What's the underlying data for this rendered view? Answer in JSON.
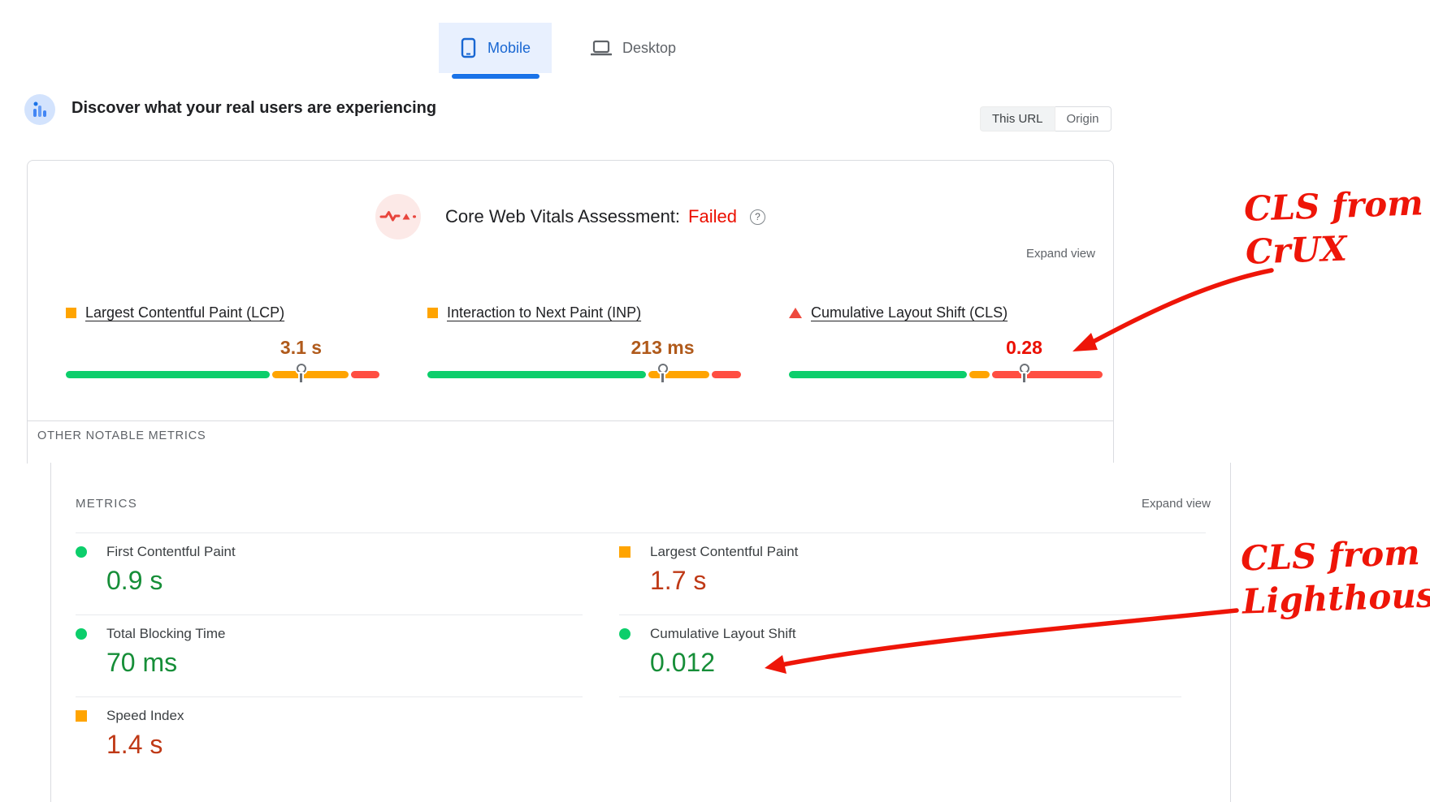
{
  "device_tabs": {
    "mobile_label": "Mobile",
    "desktop_label": "Desktop",
    "selected": "Mobile"
  },
  "field_section": {
    "title": "Discover what your real users are experiencing",
    "scope_toggle": {
      "this_url_label": "This URL",
      "origin_label": "Origin",
      "selected": "This URL"
    },
    "assessment_label": "Core Web Vitals Assessment:",
    "assessment_result": "Failed",
    "expand_view_label": "Expand view",
    "other_notable_metrics_label": "OTHER NOTABLE METRICS",
    "metrics": [
      {
        "name": "Largest Contentful Paint (LCP)",
        "value": "3.1 s",
        "status": "needs-improvement",
        "bullet": "bullet-square",
        "value_class": "val-orange",
        "distribution": {
          "good": 65,
          "ni": 24.5,
          "poor": 9,
          "marker": 75
        }
      },
      {
        "name": "Interaction to Next Paint (INP)",
        "value": "213 ms",
        "status": "needs-improvement",
        "bullet": "bullet-square",
        "value_class": "val-orange",
        "distribution": {
          "good": 70,
          "ni": 19.5,
          "poor": 9.5,
          "marker": 75
        }
      },
      {
        "name": "Cumulative Layout Shift (CLS)",
        "value": "0.28",
        "status": "poor",
        "bullet": "bullet-triangle",
        "value_class": "val-red",
        "distribution": {
          "good": 56.5,
          "ni": 6.5,
          "poor": 35,
          "marker": 75
        }
      }
    ]
  },
  "lab_section": {
    "heading": "METRICS",
    "expand_view_label": "Expand view",
    "left_column": [
      {
        "label": "First Contentful Paint",
        "value": "0.9 s",
        "icon": "dot-green",
        "value_class": "val-green"
      },
      {
        "label": "Total Blocking Time",
        "value": "70 ms",
        "icon": "dot-green",
        "value_class": "val-green"
      },
      {
        "label": "Speed Index",
        "value": "1.4 s",
        "icon": "square-orange",
        "value_class": "val-orangered"
      }
    ],
    "right_column": [
      {
        "label": "Largest Contentful Paint",
        "value": "1.7 s",
        "icon": "square-orange",
        "value_class": "val-orangered"
      },
      {
        "label": "Cumulative Layout Shift",
        "value": "0.012",
        "icon": "dot-green",
        "value_class": "val-green"
      }
    ]
  },
  "annotations": {
    "crux": {
      "line1": "CLS from",
      "line2": "CrUX"
    },
    "lighthouse": {
      "line1": "CLS from",
      "line2": "Lighthouse"
    }
  },
  "colors": {
    "good": "#0cce6b",
    "needs_improvement": "#ffa400",
    "poor": "#ff4e42",
    "accent_blue": "#1a73e8",
    "annotation_red": "#ee1508"
  }
}
